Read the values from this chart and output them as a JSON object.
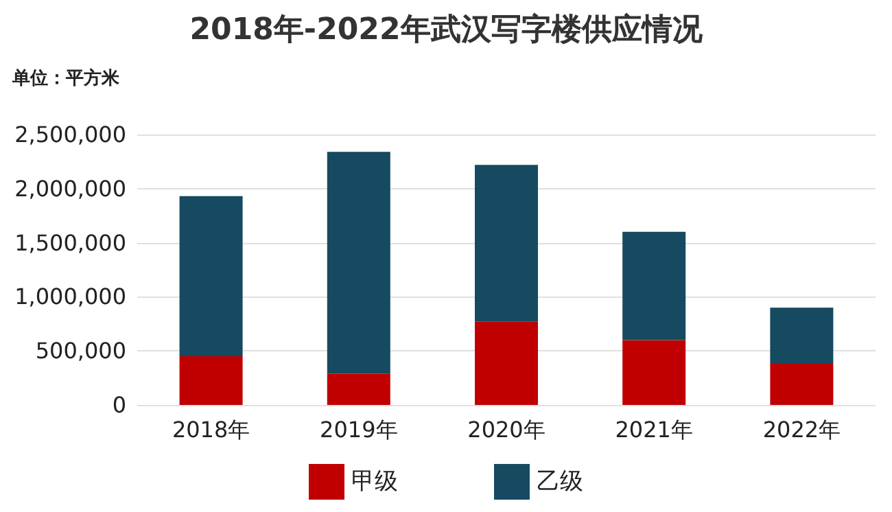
{
  "chart_data": {
    "type": "bar",
    "title": "2018年-2022年武汉写字楼供应情况",
    "ylabel": "单位：平方米",
    "categories": [
      "2018年",
      "2019年",
      "2020年",
      "2021年",
      "2022年"
    ],
    "stacked": true,
    "series": [
      {
        "name": "甲级",
        "color": "#c00000",
        "values": [
          450000,
          290000,
          770000,
          600000,
          380000
        ]
      },
      {
        "name": "乙级",
        "color": "#154a60",
        "values": [
          1480000,
          2050000,
          1450000,
          1000000,
          520000
        ]
      }
    ],
    "ylim": [
      0,
      2500000
    ],
    "yticks": [
      0,
      {
        "value": 500000,
        "label": "500,000"
      },
      {
        "value": 1000000,
        "label": "1,000,000"
      },
      {
        "value": 1500000,
        "label": "1,500,000"
      },
      {
        "value": 2000000,
        "label": "2,000,000"
      },
      {
        "value": 2500000,
        "label": "2,500,000"
      }
    ],
    "grid": "y",
    "legend": "bottom"
  }
}
